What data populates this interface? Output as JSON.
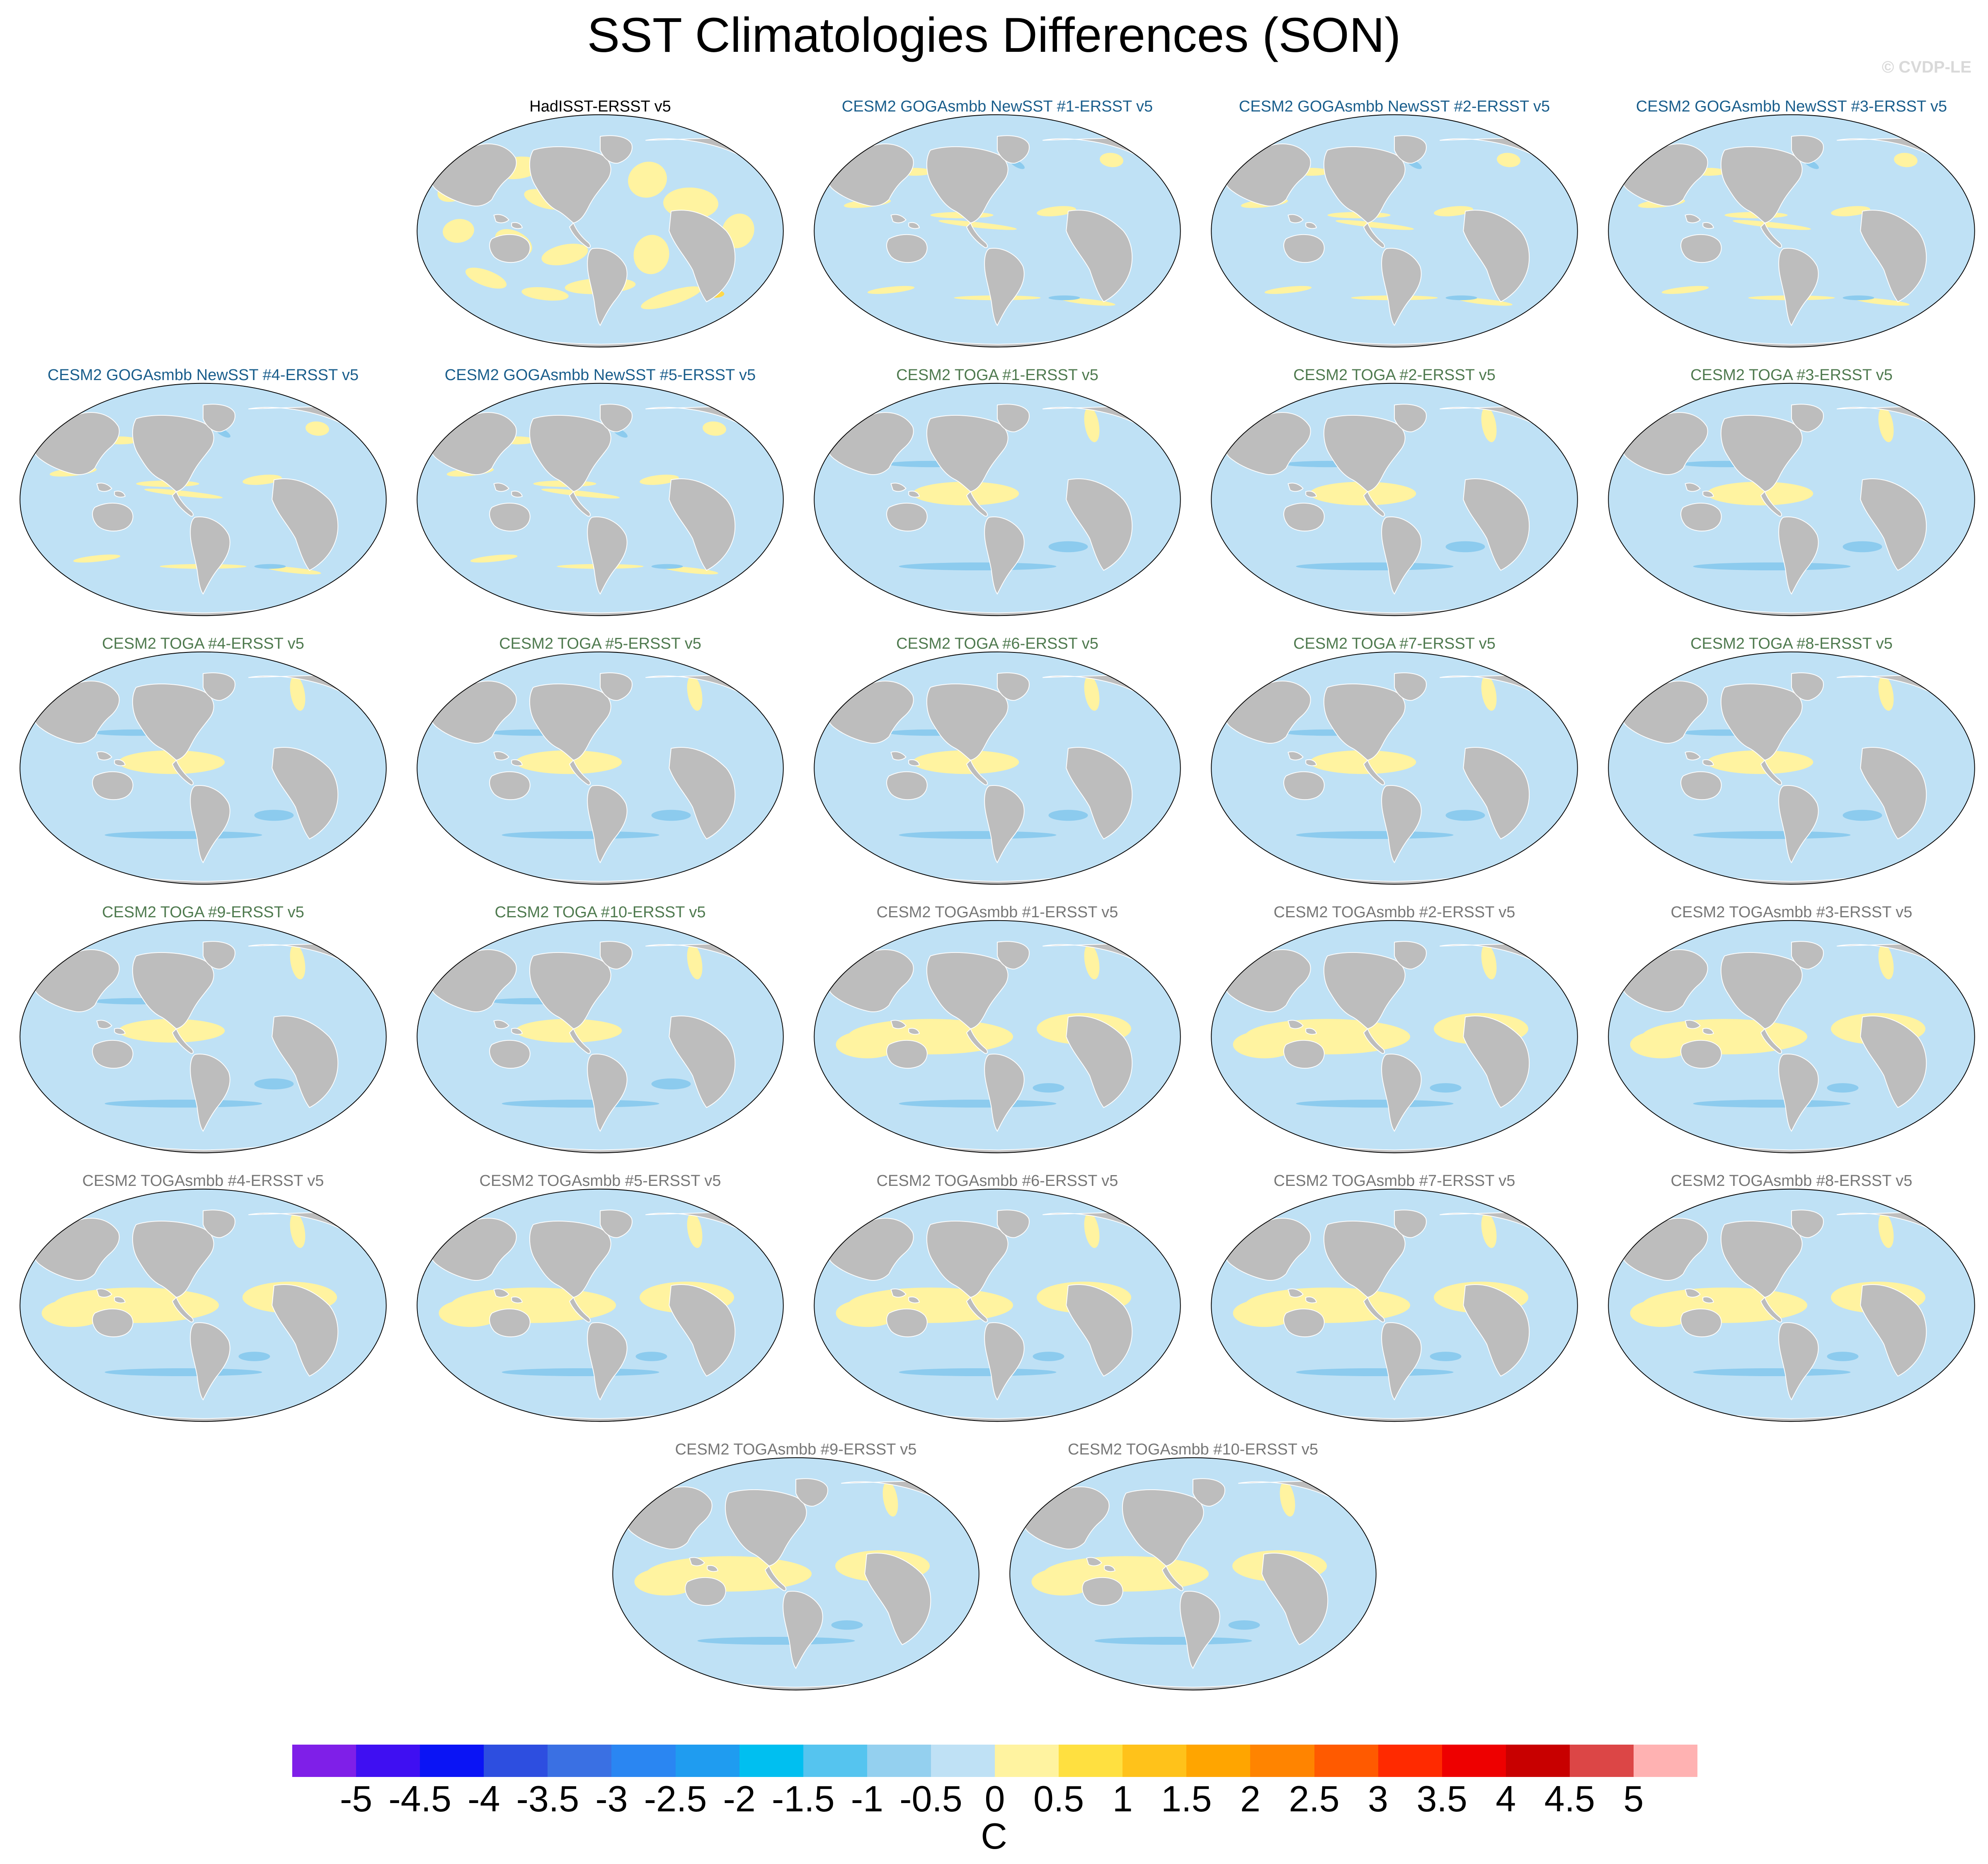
{
  "title": "SST Climatologies Differences (SON)",
  "watermark": "© CVDP-LE",
  "panels": [
    {
      "title": "HadISST-ERSST v5",
      "title_color": "#000000",
      "pattern": "obs"
    },
    {
      "title": "CESM2 GOGAsmbb NewSST #1-ERSST v5",
      "title_color": "#1a5e8c",
      "pattern": "goga"
    },
    {
      "title": "CESM2 GOGAsmbb NewSST #2-ERSST v5",
      "title_color": "#1a5e8c",
      "pattern": "goga"
    },
    {
      "title": "CESM2 GOGAsmbb NewSST #3-ERSST v5",
      "title_color": "#1a5e8c",
      "pattern": "goga"
    },
    {
      "title": "CESM2 GOGAsmbb NewSST #4-ERSST v5",
      "title_color": "#1a5e8c",
      "pattern": "goga"
    },
    {
      "title": "CESM2 GOGAsmbb NewSST #5-ERSST v5",
      "title_color": "#1a5e8c",
      "pattern": "goga"
    },
    {
      "title": "CESM2 TOGA #1-ERSST v5",
      "title_color": "#4f7a4f",
      "pattern": "toga"
    },
    {
      "title": "CESM2 TOGA #2-ERSST v5",
      "title_color": "#4f7a4f",
      "pattern": "toga"
    },
    {
      "title": "CESM2 TOGA #3-ERSST v5",
      "title_color": "#4f7a4f",
      "pattern": "toga"
    },
    {
      "title": "CESM2 TOGA #4-ERSST v5",
      "title_color": "#4f7a4f",
      "pattern": "toga"
    },
    {
      "title": "CESM2 TOGA #5-ERSST v5",
      "title_color": "#4f7a4f",
      "pattern": "toga"
    },
    {
      "title": "CESM2 TOGA #6-ERSST v5",
      "title_color": "#4f7a4f",
      "pattern": "toga"
    },
    {
      "title": "CESM2 TOGA #7-ERSST v5",
      "title_color": "#4f7a4f",
      "pattern": "toga"
    },
    {
      "title": "CESM2 TOGA #8-ERSST v5",
      "title_color": "#4f7a4f",
      "pattern": "toga"
    },
    {
      "title": "CESM2 TOGA #9-ERSST v5",
      "title_color": "#4f7a4f",
      "pattern": "toga"
    },
    {
      "title": "CESM2 TOGA #10-ERSST v5",
      "title_color": "#4f7a4f",
      "pattern": "toga"
    },
    {
      "title": "CESM2 TOGAsmbb #1-ERSST v5",
      "title_color": "#777777",
      "pattern": "togasmbb"
    },
    {
      "title": "CESM2 TOGAsmbb #2-ERSST v5",
      "title_color": "#777777",
      "pattern": "togasmbb"
    },
    {
      "title": "CESM2 TOGAsmbb #3-ERSST v5",
      "title_color": "#777777",
      "pattern": "togasmbb"
    },
    {
      "title": "CESM2 TOGAsmbb #4-ERSST v5",
      "title_color": "#777777",
      "pattern": "togasmbb"
    },
    {
      "title": "CESM2 TOGAsmbb #5-ERSST v5",
      "title_color": "#777777",
      "pattern": "togasmbb"
    },
    {
      "title": "CESM2 TOGAsmbb #6-ERSST v5",
      "title_color": "#777777",
      "pattern": "togasmbb"
    },
    {
      "title": "CESM2 TOGAsmbb #7-ERSST v5",
      "title_color": "#777777",
      "pattern": "togasmbb"
    },
    {
      "title": "CESM2 TOGAsmbb #8-ERSST v5",
      "title_color": "#777777",
      "pattern": "togasmbb"
    },
    {
      "title": "CESM2 TOGAsmbb #9-ERSST v5",
      "title_color": "#777777",
      "pattern": "togasmbb"
    },
    {
      "title": "CESM2 TOGAsmbb #10-ERSST v5",
      "title_color": "#777777",
      "pattern": "togasmbb"
    }
  ],
  "map_colors": {
    "land": "#bdbdbd",
    "ocean_neg": "#bfe1f5",
    "ocean_pos": "#fff3a0",
    "ocean_strong_neg": "#8ccbee",
    "ocean_strong_pos": "#ffd84a"
  },
  "colorbar": {
    "levels": [
      "-5",
      "-4.5",
      "-4",
      "-3.5",
      "-3",
      "-2.5",
      "-2",
      "-1.5",
      "-1",
      "-0.5",
      "0",
      "0.5",
      "1",
      "1.5",
      "2",
      "2.5",
      "3",
      "3.5",
      "4",
      "4.5",
      "5"
    ],
    "colors": [
      "#7f1fe8",
      "#3f0ff2",
      "#0a14f5",
      "#2d4ee0",
      "#3a70e3",
      "#2a86f2",
      "#1f9cf0",
      "#00bff0",
      "#55c4ef",
      "#94d0ef",
      "#bfe1f5",
      "#fff3a0",
      "#ffe040",
      "#ffc21a",
      "#ffa500",
      "#ff8400",
      "#ff5a00",
      "#ff2a00",
      "#ee0000",
      "#c80000",
      "#dc4646",
      "#ffb2b2"
    ],
    "units": "C"
  }
}
